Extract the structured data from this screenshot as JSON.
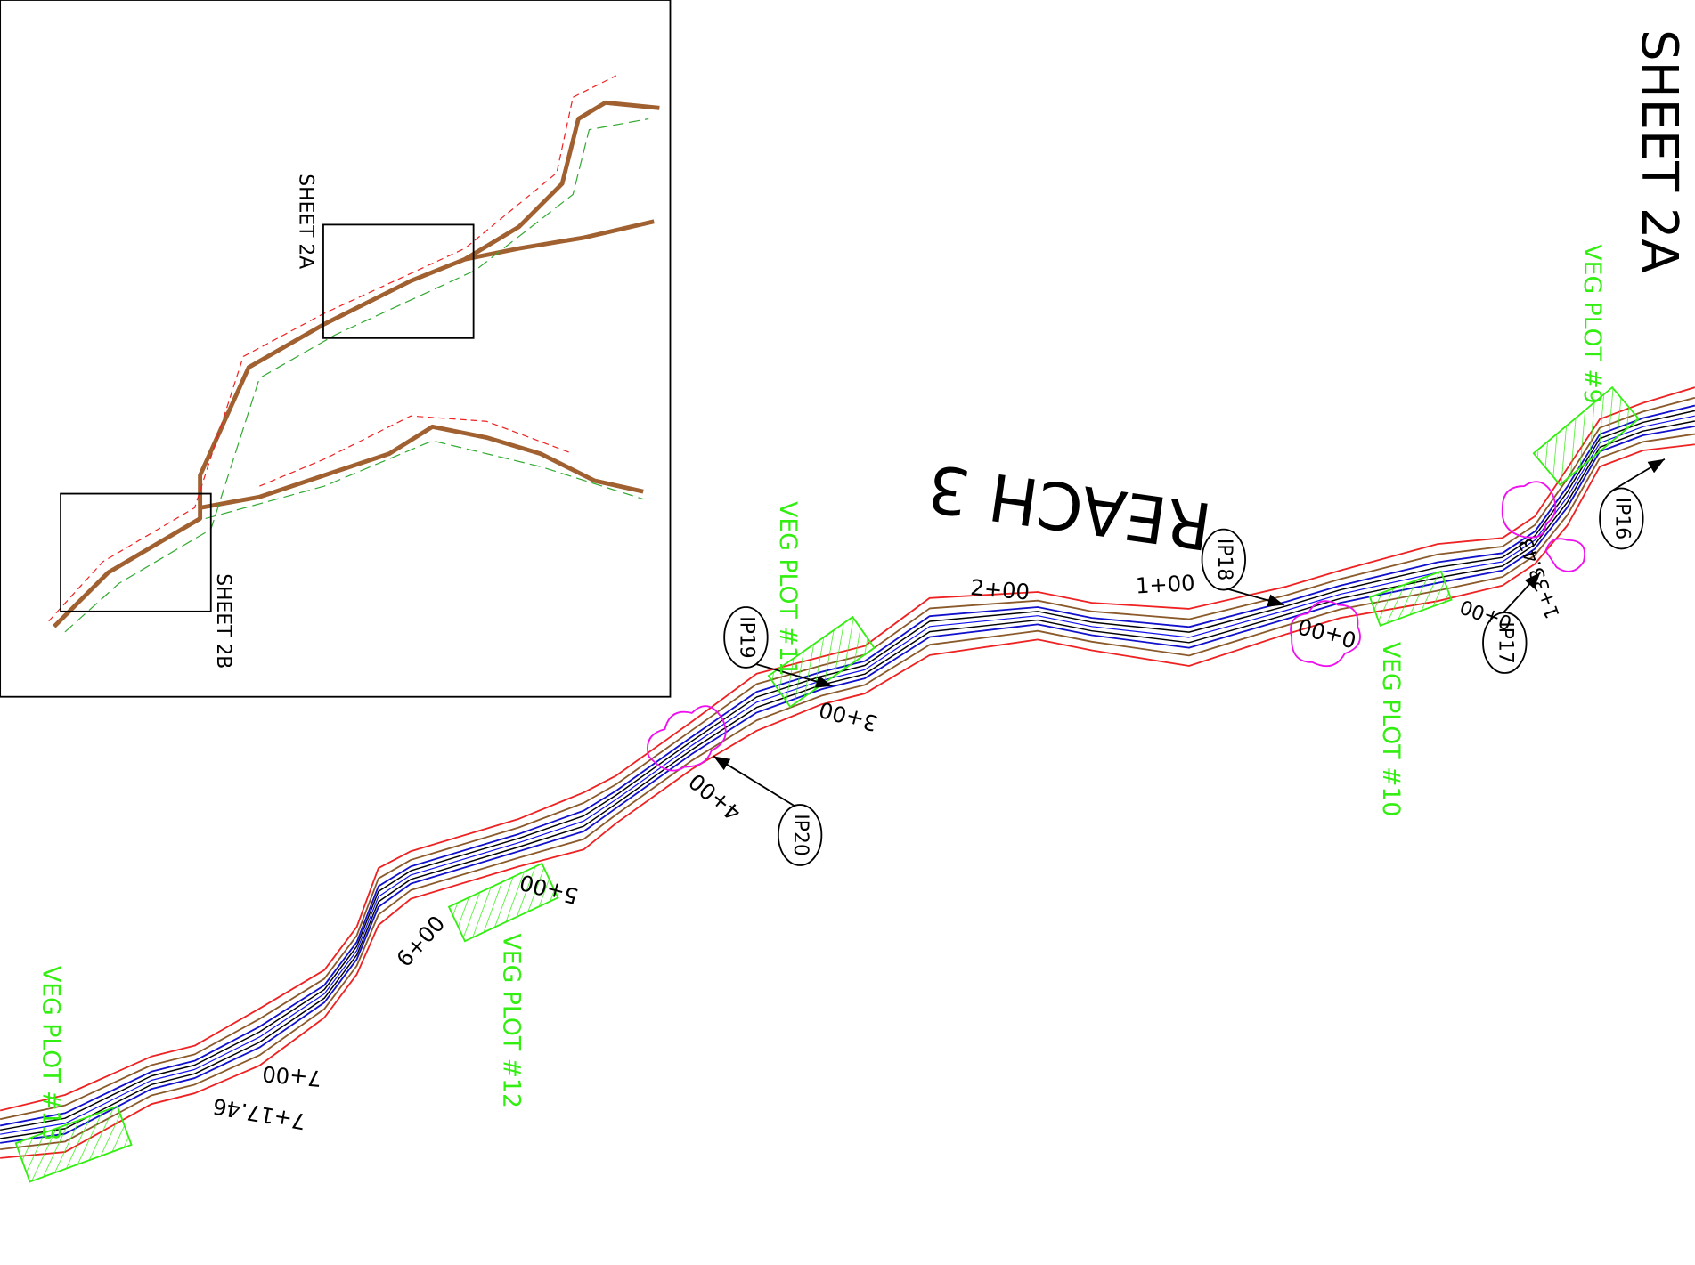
{
  "sheet_label": "SHEET 2A",
  "inset": {
    "sheet_2a": "SHEET 2A",
    "sheet_2b": "SHEET 2B"
  },
  "reach_label": "REACH 3",
  "veg_plots": [
    "VEG PLOT #9",
    "VEG PLOT #10",
    "VEG PLOT #11",
    "VEG PLOT #12",
    "VEG PLOT #13"
  ],
  "stations": [
    "0+00",
    "1+00",
    "2+00",
    "3+00",
    "4+00",
    "5+00",
    "6+00",
    "7+00",
    "7+17.46",
    "0+00",
    "1+33.43"
  ],
  "ip_labels": [
    "IP16",
    "IP17",
    "IP18",
    "IP19",
    "IP20"
  ]
}
